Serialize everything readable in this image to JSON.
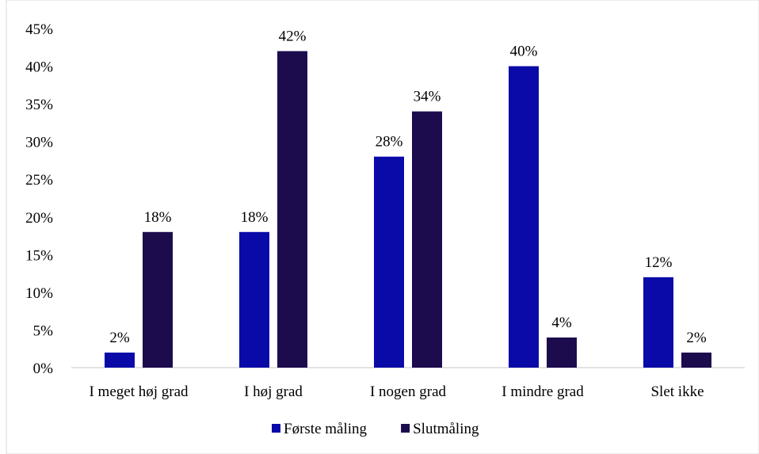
{
  "chart_data": {
    "type": "bar",
    "title": "",
    "xlabel": "",
    "ylabel": "",
    "categories": [
      "I meget høj grad",
      "I høj grad",
      "I nogen grad",
      "I mindre grad",
      "Slet ikke"
    ],
    "series": [
      {
        "name": "Første måling",
        "values": [
          2,
          18,
          28,
          40,
          12
        ],
        "color": "#0a0aa8"
      },
      {
        "name": "Slutmåling",
        "values": [
          18,
          42,
          34,
          4,
          2
        ],
        "color": "#1c0c4e"
      }
    ],
    "value_suffix": "%",
    "ylim": [
      0,
      45
    ],
    "yticks": [
      0,
      5,
      10,
      15,
      20,
      25,
      30,
      35,
      40,
      45
    ],
    "grid": false,
    "legend_position": "bottom-center",
    "axis_color": "#d9d9d9"
  }
}
